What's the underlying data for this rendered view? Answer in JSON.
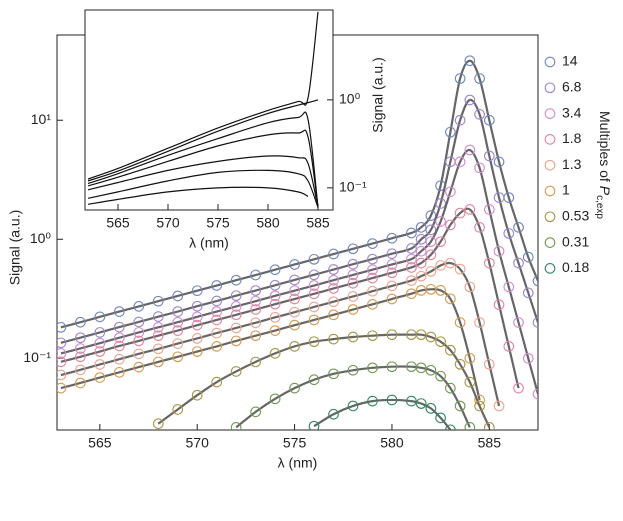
{
  "chart_data": [
    {
      "type": "scatter_line",
      "xlabel": "λ (nm)",
      "ylabel": "Signal (a.u.)",
      "ylog": true,
      "xlim": [
        562.8,
        587.5
      ],
      "ylim": [
        0.025,
        52
      ],
      "xticks": [
        565,
        570,
        575,
        580,
        585
      ],
      "yticks": [
        {
          "value": 10,
          "label": "10¹"
        },
        {
          "value": 1,
          "label": "10⁰"
        },
        {
          "value": 0.1,
          "label": "10⁻¹"
        }
      ],
      "line_color": "#666666",
      "legend_title": "Multiples of ",
      "legend_title_var": "P",
      "legend_title_sub": "c,exp",
      "x": [
        563,
        564,
        565,
        566,
        567,
        568,
        569,
        570,
        571,
        572,
        573,
        574,
        575,
        576,
        577,
        578,
        579,
        580,
        581,
        581.5,
        582,
        582.5,
        583,
        583.5,
        584,
        584.5,
        585,
        585.5,
        586,
        586.5,
        587,
        587.5
      ],
      "series": [
        {
          "name": "14",
          "color": "#6f86c0",
          "values": [
            0.182,
            0.201,
            0.223,
            0.247,
            0.273,
            0.302,
            0.334,
            0.37,
            0.409,
            0.453,
            0.501,
            0.555,
            0.614,
            0.679,
            0.752,
            0.832,
            0.92,
            1.02,
            1.13,
            1.26,
            1.58,
            2.82,
            7.94,
            22.4,
            31.6,
            22.4,
            10.0,
            4.47,
            2.24,
            1.26,
            0.708,
            0.447
          ]
        },
        {
          "name": "6.8",
          "color": "#9c86cf",
          "values": [
            0.135,
            0.149,
            0.165,
            0.183,
            0.202,
            0.224,
            0.247,
            0.274,
            0.303,
            0.336,
            0.371,
            0.411,
            0.455,
            0.503,
            0.557,
            0.617,
            0.682,
            0.756,
            0.837,
            1.0,
            1.2,
            2.0,
            4.47,
            10.0,
            14.8,
            11.2,
            5.01,
            2.24,
            1.12,
            0.631,
            0.355,
            0.2
          ]
        },
        {
          "name": "3.4",
          "color": "#d48ad0",
          "values": [
            0.11,
            0.121,
            0.134,
            0.149,
            0.165,
            0.182,
            0.201,
            0.223,
            0.247,
            0.273,
            0.302,
            0.335,
            0.37,
            0.409,
            0.453,
            0.502,
            0.555,
            0.615,
            0.681,
            0.794,
            0.955,
            1.41,
            2.51,
            4.47,
            5.62,
            3.98,
            1.78,
            0.794,
            0.398,
            0.2,
            0.1,
            0.0501
          ]
        },
        {
          "name": "1.8",
          "color": "#e6849c",
          "values": [
            0.0934,
            0.103,
            0.114,
            0.127,
            0.14,
            0.155,
            0.171,
            0.19,
            0.21,
            0.232,
            0.257,
            0.285,
            0.315,
            0.348,
            0.386,
            0.427,
            0.472,
            0.523,
            0.58,
            0.631,
            0.741,
            0.955,
            1.32,
            1.66,
            1.78,
            1.26,
            0.631,
            0.282,
            0.126,
            0.0562,
            null,
            null
          ]
        },
        {
          "name": "1.3",
          "color": "#eea38e",
          "values": [
            0.0724,
            0.08,
            0.0888,
            0.0983,
            0.109,
            0.12,
            0.133,
            0.147,
            0.163,
            0.18,
            0.199,
            0.221,
            0.244,
            0.27,
            0.299,
            0.331,
            0.366,
            0.406,
            0.45,
            0.49,
            0.537,
            0.603,
            0.631,
            0.562,
            0.398,
            0.2,
            0.0891,
            0.0398,
            null,
            null,
            null,
            null
          ]
        },
        {
          "name": "1",
          "color": "#d99a4a",
          "values": [
            0.0562,
            0.0621,
            0.0689,
            0.0763,
            0.0844,
            0.0933,
            0.103,
            0.114,
            0.126,
            0.14,
            0.155,
            0.171,
            0.19,
            0.21,
            0.232,
            0.257,
            0.284,
            0.315,
            0.349,
            0.372,
            0.38,
            0.372,
            0.316,
            0.2,
            0.1,
            0.0447,
            null,
            null,
            null,
            null,
            null,
            null
          ]
        },
        {
          "name": "0.53",
          "color": "#a8963e",
          "values": [
            null,
            null,
            null,
            null,
            null,
            0.0282,
            0.0372,
            0.049,
            0.0631,
            0.0776,
            0.0933,
            0.11,
            0.126,
            0.138,
            0.145,
            0.151,
            0.155,
            0.158,
            0.158,
            0.158,
            0.151,
            0.138,
            0.117,
            0.0891,
            0.0631,
            0.0398,
            0.0263,
            null,
            null,
            null,
            null,
            null
          ]
        },
        {
          "name": "0.31",
          "color": "#6f9a4e",
          "values": [
            null,
            null,
            null,
            null,
            null,
            null,
            null,
            null,
            null,
            0.0263,
            0.0355,
            0.0457,
            0.0562,
            0.0661,
            0.0741,
            0.0794,
            0.0832,
            0.0851,
            0.0851,
            0.0832,
            0.0794,
            0.0708,
            0.0562,
            0.0398,
            0.0263,
            null,
            null,
            null,
            null,
            null,
            null,
            null
          ]
        },
        {
          "name": "0.18",
          "color": "#2f8a5c",
          "values": [
            null,
            null,
            null,
            null,
            null,
            null,
            null,
            null,
            null,
            null,
            null,
            null,
            null,
            0.0269,
            0.0339,
            0.0398,
            0.0437,
            0.0447,
            0.0437,
            0.0417,
            0.038,
            0.0316,
            0.0251,
            null,
            null,
            null,
            null,
            null,
            null,
            null,
            null,
            null
          ]
        }
      ]
    },
    {
      "type": "line",
      "xlabel": "λ (nm)",
      "ylabel": "Signal (a.u.)",
      "ylog": true,
      "xlim": [
        561.7,
        586.5
      ],
      "ylim": [
        0.056,
        10.5
      ],
      "xticks": [
        565,
        570,
        575,
        580,
        585
      ],
      "yticks": [
        {
          "value": 1,
          "label": "10⁰"
        },
        {
          "value": 0.1,
          "label": "10⁻¹"
        }
      ],
      "x": [
        562,
        565,
        570,
        575,
        580,
        583,
        584,
        585
      ],
      "series": [
        {
          "color": "#111111",
          "values": [
            0.126,
            0.166,
            0.282,
            0.479,
            0.759,
            0.955,
            1.05,
            10
          ]
        },
        {
          "color": "#111111",
          "values": [
            0.12,
            0.155,
            0.26,
            0.44,
            0.7,
            0.87,
            0.93,
            1.0
          ]
        },
        {
          "color": "#111111",
          "values": [
            0.112,
            0.145,
            0.234,
            0.363,
            0.55,
            0.63,
            0.6,
            0.06
          ]
        },
        {
          "color": "#111111",
          "values": [
            0.105,
            0.132,
            0.2,
            0.3,
            0.4,
            0.42,
            0.38,
            0.06
          ]
        },
        {
          "color": "#111111",
          "values": [
            0.095,
            0.115,
            0.158,
            0.2,
            0.23,
            0.22,
            0.19,
            0.06
          ]
        },
        {
          "color": "#111111",
          "values": [
            0.076,
            0.09,
            0.12,
            0.15,
            0.158,
            0.145,
            0.12,
            0.06
          ]
        },
        {
          "color": "#111111",
          "values": [
            0.065,
            0.074,
            0.09,
            0.1,
            0.1,
            0.09,
            0.08,
            null
          ]
        }
      ]
    }
  ]
}
